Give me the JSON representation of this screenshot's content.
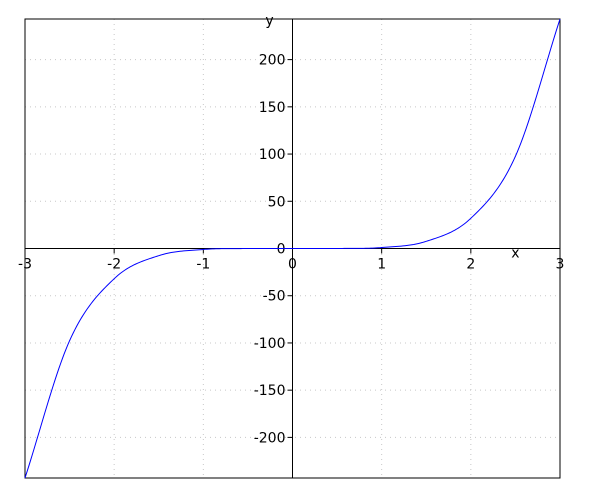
{
  "chart_data": {
    "type": "line",
    "title": "",
    "xlabel": "x",
    "ylabel": "y",
    "xlim": [
      -3,
      3
    ],
    "ylim": [
      -243,
      243
    ],
    "xticks": [
      -3,
      -2,
      -1,
      0,
      1,
      2,
      3
    ],
    "xtick_labels": [
      "-3",
      "-2",
      "-1",
      "0",
      "1",
      "2",
      "3"
    ],
    "yticks": [
      -200,
      -150,
      -100,
      -50,
      0,
      50,
      100,
      150,
      200
    ],
    "ytick_labels": [
      "-200",
      "-150",
      "-100",
      "-50",
      "0",
      "50",
      "100",
      "150",
      "200"
    ],
    "grid": true,
    "series": [
      {
        "color": "#0000ff",
        "x": [
          -3,
          -2.5,
          -2,
          -1.5,
          -1,
          -0.5,
          0,
          0.5,
          1,
          1.5,
          2,
          2.5,
          3
        ],
        "y": [
          -243,
          -97.66,
          -32,
          -7.59,
          -1,
          -0.03,
          0,
          0.03,
          1,
          7.59,
          32,
          97.66,
          243
        ]
      }
    ]
  }
}
